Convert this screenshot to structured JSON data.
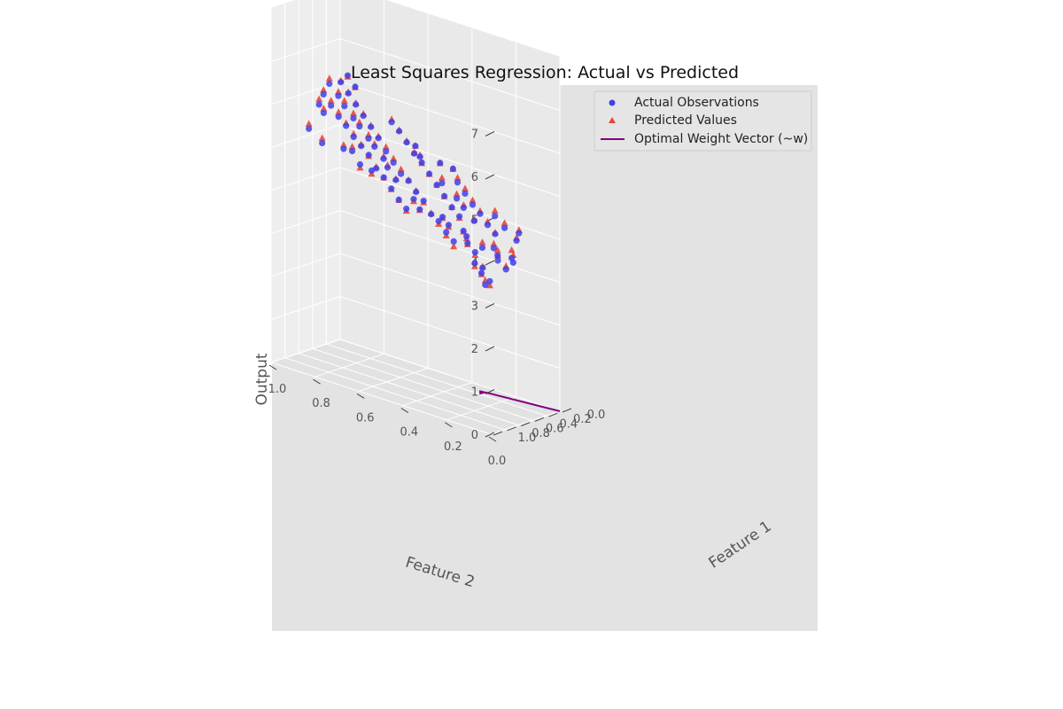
{
  "chart_data": {
    "type": "scatter",
    "title": "Least Squares Regression: Actual vs Predicted",
    "xlabel": "Feature 1",
    "ylabel": "Feature 2",
    "zlabel": "Output",
    "xlim": [
      0,
      1
    ],
    "ylim": [
      0,
      1
    ],
    "zlim": [
      0,
      7
    ],
    "x_ticks": [
      "0.0",
      "0.2",
      "0.4",
      "0.6",
      "0.8",
      "1.0"
    ],
    "y_ticks": [
      "0.0",
      "0.2",
      "0.4",
      "0.6",
      "0.8",
      "1.0"
    ],
    "z_ticks": [
      "0",
      "1",
      "2",
      "3",
      "4",
      "5",
      "6",
      "7"
    ],
    "grid": true,
    "legend_position": "top-right",
    "colors": {
      "actual": "#4040e8",
      "predicted": "#e8463a",
      "weight_vector": "#800080",
      "pane_back": "#e9e9e9",
      "pane_side": "#eeeeee",
      "pane_floor": "#e2e2e2",
      "axes_bg": "#e3e3e3"
    },
    "series": [
      {
        "name": "Actual Observations",
        "marker": "circle",
        "points": [
          [
            0.95,
            0.02,
            3.5
          ],
          [
            0.92,
            0.05,
            3.35
          ],
          [
            0.88,
            0.08,
            3.55
          ],
          [
            0.85,
            0.12,
            3.7
          ],
          [
            0.8,
            0.1,
            3.6
          ],
          [
            0.75,
            0.15,
            3.85
          ],
          [
            0.7,
            0.2,
            3.95
          ],
          [
            0.65,
            0.22,
            4.05
          ],
          [
            0.6,
            0.25,
            4.1
          ],
          [
            0.55,
            0.18,
            3.8
          ],
          [
            0.9,
            0.2,
            4.1
          ],
          [
            0.85,
            0.25,
            4.2
          ],
          [
            0.8,
            0.3,
            4.35
          ],
          [
            0.75,
            0.35,
            4.4
          ],
          [
            0.7,
            0.4,
            4.6
          ],
          [
            0.65,
            0.45,
            4.7
          ],
          [
            0.6,
            0.5,
            4.85
          ],
          [
            0.55,
            0.55,
            4.9
          ],
          [
            0.5,
            0.6,
            5.05
          ],
          [
            0.45,
            0.65,
            5.2
          ],
          [
            0.4,
            0.7,
            5.4
          ],
          [
            0.35,
            0.75,
            5.55
          ],
          [
            0.3,
            0.8,
            5.7
          ],
          [
            0.25,
            0.85,
            5.85
          ],
          [
            0.2,
            0.9,
            6.0
          ],
          [
            0.15,
            0.95,
            6.15
          ],
          [
            0.1,
            0.9,
            6.1
          ],
          [
            0.05,
            0.95,
            6.25
          ],
          [
            0.95,
            0.4,
            4.55
          ],
          [
            0.9,
            0.45,
            4.65
          ],
          [
            0.85,
            0.5,
            4.8
          ],
          [
            0.8,
            0.55,
            4.95
          ],
          [
            0.75,
            0.6,
            5.05
          ],
          [
            0.7,
            0.65,
            5.25
          ],
          [
            0.65,
            0.7,
            5.35
          ],
          [
            0.6,
            0.75,
            5.45
          ],
          [
            0.55,
            0.8,
            5.6
          ],
          [
            0.5,
            0.85,
            5.7
          ],
          [
            0.45,
            0.9,
            5.85
          ],
          [
            0.4,
            0.95,
            6.0
          ],
          [
            0.5,
            0.3,
            4.3
          ],
          [
            0.45,
            0.35,
            4.4
          ],
          [
            0.4,
            0.4,
            4.55
          ],
          [
            0.35,
            0.45,
            4.7
          ],
          [
            0.3,
            0.5,
            4.85
          ],
          [
            0.25,
            0.55,
            5.0
          ],
          [
            0.2,
            0.6,
            5.1
          ],
          [
            0.15,
            0.65,
            5.25
          ],
          [
            0.1,
            0.7,
            5.4
          ],
          [
            0.05,
            0.75,
            5.5
          ],
          [
            0.3,
            0.2,
            3.95
          ],
          [
            0.25,
            0.25,
            4.05
          ],
          [
            0.2,
            0.3,
            4.2
          ],
          [
            0.15,
            0.35,
            4.3
          ],
          [
            0.1,
            0.4,
            4.45
          ],
          [
            0.05,
            0.45,
            4.6
          ],
          [
            0.62,
            0.05,
            3.55
          ],
          [
            0.58,
            0.1,
            3.65
          ],
          [
            0.52,
            0.12,
            3.7
          ],
          [
            0.48,
            0.15,
            3.8
          ],
          [
            0.42,
            0.08,
            3.55
          ],
          [
            0.38,
            0.1,
            3.6
          ],
          [
            0.68,
            0.32,
            4.35
          ],
          [
            0.72,
            0.28,
            4.25
          ],
          [
            0.78,
            0.42,
            4.65
          ],
          [
            0.82,
            0.38,
            4.5
          ],
          [
            0.88,
            0.58,
            5.1
          ],
          [
            0.92,
            0.62,
            5.2
          ],
          [
            0.58,
            0.62,
            5.15
          ],
          [
            0.52,
            0.68,
            5.3
          ],
          [
            0.48,
            0.72,
            5.4
          ],
          [
            0.42,
            0.78,
            5.55
          ],
          [
            0.38,
            0.82,
            5.65
          ],
          [
            0.32,
            0.88,
            5.8
          ],
          [
            0.28,
            0.92,
            5.95
          ],
          [
            0.22,
            0.98,
            6.1
          ],
          [
            0.18,
            0.58,
            5.05
          ],
          [
            0.12,
            0.62,
            5.2
          ],
          [
            0.08,
            0.52,
            4.95
          ],
          [
            0.02,
            0.48,
            4.85
          ],
          [
            0.35,
            0.28,
            4.15
          ],
          [
            0.28,
            0.35,
            4.3
          ],
          [
            0.22,
            0.4,
            4.4
          ],
          [
            0.18,
            0.48,
            4.6
          ],
          [
            0.65,
            0.58,
            5.05
          ],
          [
            0.72,
            0.52,
            4.9
          ],
          [
            0.78,
            0.7,
            5.3
          ],
          [
            0.84,
            0.72,
            5.35
          ],
          [
            0.96,
            0.78,
            5.45
          ],
          [
            0.93,
            0.85,
            5.65
          ],
          [
            0.62,
            0.88,
            5.8
          ],
          [
            0.56,
            0.92,
            5.9
          ],
          [
            0.15,
            0.15,
            3.8
          ],
          [
            0.1,
            0.22,
            3.95
          ],
          [
            0.05,
            0.28,
            4.1
          ],
          [
            0.02,
            0.18,
            3.85
          ]
        ]
      },
      {
        "name": "Predicted Values",
        "marker": "triangle",
        "points": [
          [
            0.95,
            0.02,
            3.4
          ],
          [
            0.92,
            0.05,
            3.45
          ],
          [
            0.88,
            0.08,
            3.52
          ],
          [
            0.85,
            0.12,
            3.62
          ],
          [
            0.8,
            0.1,
            3.62
          ],
          [
            0.75,
            0.15,
            3.78
          ],
          [
            0.7,
            0.2,
            3.92
          ],
          [
            0.65,
            0.22,
            4.0
          ],
          [
            0.6,
            0.25,
            4.08
          ],
          [
            0.55,
            0.18,
            3.92
          ],
          [
            0.9,
            0.2,
            3.98
          ],
          [
            0.85,
            0.25,
            4.12
          ],
          [
            0.8,
            0.3,
            4.28
          ],
          [
            0.75,
            0.35,
            4.42
          ],
          [
            0.7,
            0.4,
            4.56
          ],
          [
            0.65,
            0.45,
            4.72
          ],
          [
            0.6,
            0.5,
            4.86
          ],
          [
            0.55,
            0.55,
            5.0
          ],
          [
            0.5,
            0.6,
            5.14
          ],
          [
            0.45,
            0.65,
            5.3
          ],
          [
            0.4,
            0.7,
            5.44
          ],
          [
            0.35,
            0.75,
            5.58
          ],
          [
            0.3,
            0.8,
            5.74
          ],
          [
            0.25,
            0.85,
            5.88
          ],
          [
            0.2,
            0.9,
            6.02
          ],
          [
            0.15,
            0.95,
            6.18
          ],
          [
            0.1,
            0.9,
            6.08
          ],
          [
            0.05,
            0.95,
            6.22
          ],
          [
            0.95,
            0.4,
            4.5
          ],
          [
            0.9,
            0.45,
            4.64
          ],
          [
            0.85,
            0.5,
            4.78
          ],
          [
            0.8,
            0.55,
            4.94
          ],
          [
            0.75,
            0.6,
            5.08
          ],
          [
            0.7,
            0.65,
            5.22
          ],
          [
            0.65,
            0.7,
            5.38
          ],
          [
            0.6,
            0.75,
            5.52
          ],
          [
            0.55,
            0.8,
            5.66
          ],
          [
            0.5,
            0.85,
            5.8
          ],
          [
            0.45,
            0.9,
            5.96
          ],
          [
            0.4,
            0.95,
            6.1
          ],
          [
            0.5,
            0.3,
            4.26
          ],
          [
            0.45,
            0.35,
            4.4
          ],
          [
            0.4,
            0.4,
            4.54
          ],
          [
            0.35,
            0.45,
            4.7
          ],
          [
            0.3,
            0.5,
            4.84
          ],
          [
            0.25,
            0.55,
            4.98
          ],
          [
            0.2,
            0.6,
            5.12
          ],
          [
            0.15,
            0.65,
            5.28
          ],
          [
            0.1,
            0.7,
            5.42
          ],
          [
            0.05,
            0.75,
            5.56
          ],
          [
            0.3,
            0.2,
            3.98
          ],
          [
            0.25,
            0.25,
            4.12
          ],
          [
            0.2,
            0.3,
            4.26
          ],
          [
            0.15,
            0.35,
            4.4
          ],
          [
            0.1,
            0.4,
            4.56
          ],
          [
            0.05,
            0.45,
            4.7
          ],
          [
            0.62,
            0.05,
            3.62
          ],
          [
            0.58,
            0.1,
            3.76
          ],
          [
            0.52,
            0.12,
            3.82
          ],
          [
            0.48,
            0.15,
            3.9
          ],
          [
            0.42,
            0.08,
            3.72
          ],
          [
            0.38,
            0.1,
            3.78
          ],
          [
            0.68,
            0.32,
            4.32
          ],
          [
            0.72,
            0.28,
            4.2
          ],
          [
            0.78,
            0.42,
            4.6
          ],
          [
            0.82,
            0.38,
            4.48
          ],
          [
            0.88,
            0.58,
            5.02
          ],
          [
            0.92,
            0.62,
            5.12
          ],
          [
            0.58,
            0.62,
            5.2
          ],
          [
            0.52,
            0.68,
            5.36
          ],
          [
            0.48,
            0.72,
            5.48
          ],
          [
            0.42,
            0.78,
            5.64
          ],
          [
            0.38,
            0.82,
            5.76
          ],
          [
            0.32,
            0.88,
            5.92
          ],
          [
            0.28,
            0.92,
            6.04
          ],
          [
            0.22,
            0.98,
            6.22
          ],
          [
            0.18,
            0.58,
            5.08
          ],
          [
            0.12,
            0.62,
            5.2
          ],
          [
            0.08,
            0.52,
            4.94
          ],
          [
            0.02,
            0.48,
            4.84
          ],
          [
            0.35,
            0.28,
            4.18
          ],
          [
            0.28,
            0.35,
            4.36
          ],
          [
            0.22,
            0.4,
            4.5
          ],
          [
            0.18,
            0.48,
            4.72
          ],
          [
            0.65,
            0.58,
            5.1
          ],
          [
            0.72,
            0.52,
            4.92
          ],
          [
            0.78,
            0.7,
            5.4
          ],
          [
            0.84,
            0.72,
            5.44
          ],
          [
            0.96,
            0.78,
            5.56
          ],
          [
            0.93,
            0.85,
            5.76
          ],
          [
            0.62,
            0.88,
            5.9
          ],
          [
            0.56,
            0.92,
            6.02
          ],
          [
            0.15,
            0.15,
            3.86
          ],
          [
            0.1,
            0.22,
            4.06
          ],
          [
            0.05,
            0.28,
            4.22
          ],
          [
            0.02,
            0.18,
            3.92
          ]
        ]
      },
      {
        "name": "Optimal Weight Vector (~w)",
        "marker": "line",
        "points": [
          [
            0,
            0,
            0
          ],
          [
            0.12,
            0.3,
            0
          ]
        ]
      }
    ]
  }
}
